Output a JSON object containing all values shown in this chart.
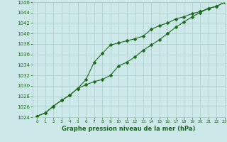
{
  "x": [
    0,
    1,
    2,
    3,
    4,
    5,
    6,
    7,
    8,
    9,
    10,
    11,
    12,
    13,
    14,
    15,
    16,
    17,
    18,
    19,
    20,
    21,
    22,
    23
  ],
  "line1": [
    1024.2,
    1024.8,
    1026.1,
    1027.2,
    1028.2,
    1029.5,
    1031.2,
    1034.5,
    1036.2,
    1037.8,
    1038.2,
    1038.6,
    1039.0,
    1039.5,
    1040.8,
    1041.5,
    1042.0,
    1042.8,
    1043.2,
    1043.8,
    1044.2,
    1044.8,
    1045.2,
    1046.0
  ],
  "line2": [
    1024.2,
    1024.8,
    1026.1,
    1027.2,
    1028.2,
    1029.5,
    1030.2,
    1030.8,
    1031.2,
    1032.0,
    1033.8,
    1034.5,
    1035.5,
    1036.8,
    1037.8,
    1038.8,
    1040.0,
    1041.2,
    1042.2,
    1043.2,
    1044.0,
    1044.8,
    1045.2,
    1046.0
  ],
  "ylim": [
    1024,
    1046
  ],
  "xlim": [
    -0.5,
    23
  ],
  "yticks": [
    1024,
    1026,
    1028,
    1030,
    1032,
    1034,
    1036,
    1038,
    1040,
    1042,
    1044,
    1046
  ],
  "xticks": [
    0,
    1,
    2,
    3,
    4,
    5,
    6,
    7,
    8,
    9,
    10,
    11,
    12,
    13,
    14,
    15,
    16,
    17,
    18,
    19,
    20,
    21,
    22,
    23
  ],
  "line_color": "#1a6b1a",
  "bg_color": "#cce8e8",
  "grid_color": "#aacccc",
  "xlabel": "Graphe pression niveau de la mer (hPa)",
  "xlabel_color": "#1a6b1a",
  "tick_color": "#1a6b1a",
  "marker": "D",
  "marker_size": 2.5
}
